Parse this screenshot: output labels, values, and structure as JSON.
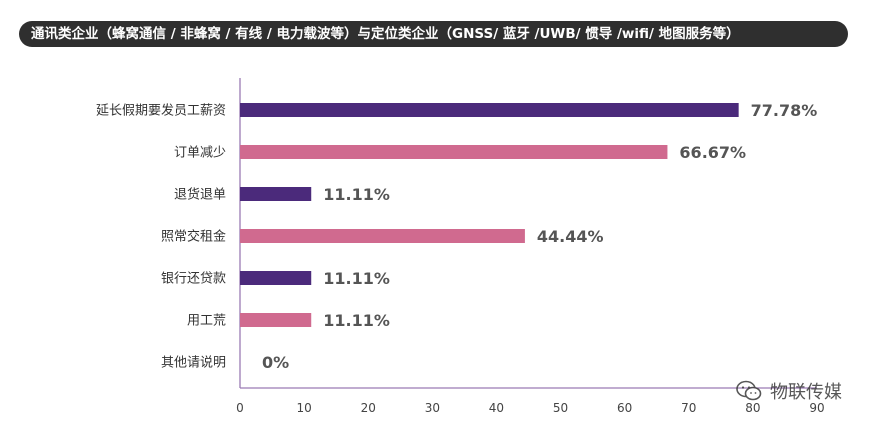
{
  "title": "通讯类企业（蜂窝通信 / 非蜂窝 / 有线 / 电力载波等）与定位类企业（GNSS/ 蓝牙 /UWB/ 惯导 /wifi/ 地图服务等）",
  "colors": {
    "purple": "#4b2a7b",
    "pink": "#d06a8f",
    "axis": "#9a7bb3"
  },
  "watermark": {
    "text": "物联传媒",
    "icon": "wechat-icon"
  },
  "chart_data": {
    "type": "bar",
    "orientation": "horizontal",
    "categories": [
      "延长假期要发员工薪资",
      "订单减少",
      "退货退单",
      "照常交租金",
      "银行还贷款",
      "用工荒",
      "其他请说明"
    ],
    "values": [
      77.78,
      66.67,
      11.11,
      44.44,
      11.11,
      11.11,
      0
    ],
    "value_labels": [
      "77.78%",
      "66.67%",
      "11.11%",
      "44.44%",
      "11.11%",
      "11.11%",
      "0%"
    ],
    "bar_colors": [
      "#4b2a7b",
      "#d06a8f",
      "#4b2a7b",
      "#d06a8f",
      "#4b2a7b",
      "#d06a8f",
      "#4b2a7b"
    ],
    "xlim": [
      0,
      90
    ],
    "xticks": [
      0,
      10,
      20,
      30,
      40,
      50,
      60,
      70,
      80,
      90
    ],
    "grid": false
  }
}
